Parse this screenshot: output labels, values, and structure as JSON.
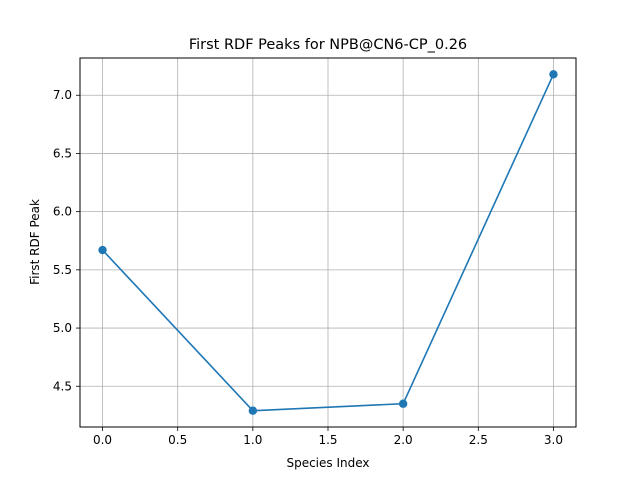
{
  "chart_data": {
    "type": "line",
    "title": "First RDF Peaks for NPB@CN6-CP_0.26",
    "xlabel": "Species Index",
    "ylabel": "First RDF Peak",
    "x": [
      0,
      1,
      2,
      3
    ],
    "series": [
      {
        "values": [
          5.67,
          4.29,
          4.35,
          7.18
        ],
        "color": "#1f77b4",
        "marker": "circle"
      }
    ],
    "xlim": [
      -0.15,
      3.15
    ],
    "ylim": [
      4.15,
      7.32
    ],
    "xticks": [
      0.0,
      0.5,
      1.0,
      1.5,
      2.0,
      2.5,
      3.0
    ],
    "xtick_labels": [
      "0.0",
      "0.5",
      "1.0",
      "1.5",
      "2.0",
      "2.5",
      "3.0"
    ],
    "yticks": [
      4.5,
      5.0,
      5.5,
      6.0,
      6.5,
      7.0
    ],
    "ytick_labels": [
      "4.5",
      "5.0",
      "5.5",
      "6.0",
      "6.5",
      "7.0"
    ],
    "grid": true,
    "legend": false
  }
}
